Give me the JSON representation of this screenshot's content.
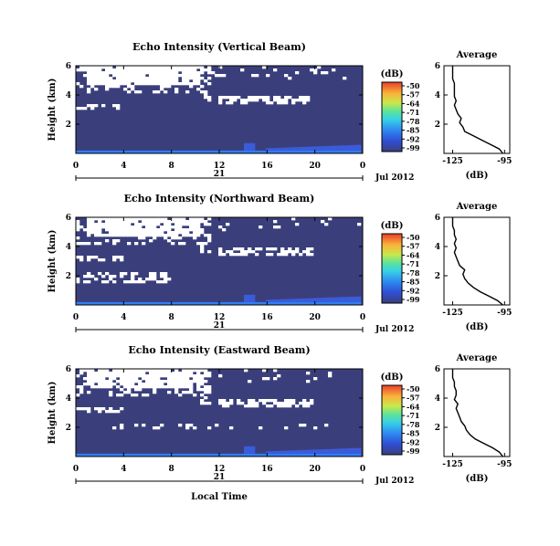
{
  "figure": {
    "xlabel": "Local Time",
    "date_label": "21",
    "month_label": "Jul 2012"
  },
  "chart_data": [
    {
      "type": "heatmap",
      "title": "Echo Intensity (Vertical Beam)",
      "ylabel": "Height (km)",
      "xlim": [
        0,
        24
      ],
      "ylim": [
        0,
        6
      ],
      "xticks": [
        "0",
        "4",
        "8",
        "12",
        "16",
        "20",
        "0"
      ],
      "yticks": [
        "2",
        "4",
        "6"
      ],
      "colorbar": {
        "unit": "(dB)",
        "ticks": [
          "-50",
          "-57",
          "-64",
          "-71",
          "-78",
          "-85",
          "-92",
          "-99"
        ]
      },
      "average": {
        "title": "Average",
        "xlabel": "(dB)",
        "xticks": [
          "-125",
          "-95"
        ],
        "yticks": [
          "2",
          "4",
          "6"
        ],
        "profile": [
          [
            -96,
            0.0
          ],
          [
            -98,
            0.3
          ],
          [
            -103,
            0.6
          ],
          [
            -108,
            0.9
          ],
          [
            -113,
            1.2
          ],
          [
            -118,
            1.5
          ],
          [
            -119,
            1.8
          ],
          [
            -121,
            2.1
          ],
          [
            -120,
            2.4
          ],
          [
            -122,
            2.7
          ],
          [
            -123,
            3.0
          ],
          [
            -124,
            3.3
          ],
          [
            -123,
            3.6
          ],
          [
            -124,
            3.9
          ],
          [
            -124,
            4.2
          ],
          [
            -124,
            4.5
          ],
          [
            -124,
            4.8
          ],
          [
            -125,
            5.1
          ],
          [
            -125,
            5.4
          ],
          [
            -125,
            5.7
          ],
          [
            -125,
            6.0
          ]
        ]
      }
    },
    {
      "type": "heatmap",
      "title": "Echo Intensity (Northward Beam)",
      "ylabel": "Height (km)",
      "xlim": [
        0,
        24
      ],
      "ylim": [
        0,
        6
      ],
      "xticks": [
        "0",
        "4",
        "8",
        "12",
        "16",
        "20",
        "0"
      ],
      "yticks": [
        "2",
        "4",
        "6"
      ],
      "colorbar": {
        "unit": "(dB)",
        "ticks": [
          "-50",
          "-57",
          "-64",
          "-71",
          "-78",
          "-85",
          "-92",
          "-99"
        ]
      },
      "average": {
        "title": "Average",
        "xlabel": "(dB)",
        "xticks": [
          "-125",
          "-95"
        ],
        "yticks": [
          "2",
          "4",
          "6"
        ],
        "profile": [
          [
            -96,
            0.0
          ],
          [
            -99,
            0.3
          ],
          [
            -104,
            0.6
          ],
          [
            -109,
            0.9
          ],
          [
            -113,
            1.2
          ],
          [
            -116,
            1.5
          ],
          [
            -118,
            1.8
          ],
          [
            -119,
            2.1
          ],
          [
            -118,
            2.4
          ],
          [
            -121,
            2.7
          ],
          [
            -122,
            3.0
          ],
          [
            -123,
            3.3
          ],
          [
            -124,
            3.6
          ],
          [
            -123,
            3.9
          ],
          [
            -124,
            4.2
          ],
          [
            -123,
            4.5
          ],
          [
            -124,
            4.8
          ],
          [
            -124,
            5.1
          ],
          [
            -125,
            5.4
          ],
          [
            -125,
            5.7
          ],
          [
            -125,
            6.0
          ]
        ]
      }
    },
    {
      "type": "heatmap",
      "title": "Echo Intensity (Eastward Beam)",
      "ylabel": "Height (km)",
      "xlim": [
        0,
        24
      ],
      "ylim": [
        0,
        6
      ],
      "xticks": [
        "0",
        "4",
        "8",
        "12",
        "16",
        "20",
        "0"
      ],
      "yticks": [
        "2",
        "4",
        "6"
      ],
      "colorbar": {
        "unit": "(dB)",
        "ticks": [
          "-50",
          "-57",
          "-64",
          "-71",
          "-78",
          "-85",
          "-92",
          "-99"
        ]
      },
      "average": {
        "title": "Average",
        "xlabel": "(dB)",
        "xticks": [
          "-125",
          "-95"
        ],
        "yticks": [
          "2",
          "4",
          "6"
        ],
        "profile": [
          [
            -96,
            0.0
          ],
          [
            -98,
            0.3
          ],
          [
            -102,
            0.6
          ],
          [
            -107,
            0.9
          ],
          [
            -112,
            1.2
          ],
          [
            -115,
            1.5
          ],
          [
            -117,
            1.8
          ],
          [
            -118,
            2.1
          ],
          [
            -120,
            2.4
          ],
          [
            -121,
            2.7
          ],
          [
            -122,
            3.0
          ],
          [
            -123,
            3.3
          ],
          [
            -122,
            3.6
          ],
          [
            -124,
            3.9
          ],
          [
            -123,
            4.2
          ],
          [
            -123,
            4.5
          ],
          [
            -124,
            4.8
          ],
          [
            -124,
            5.1
          ],
          [
            -125,
            5.4
          ],
          [
            -125,
            5.7
          ],
          [
            -125,
            6.0
          ]
        ]
      }
    }
  ]
}
